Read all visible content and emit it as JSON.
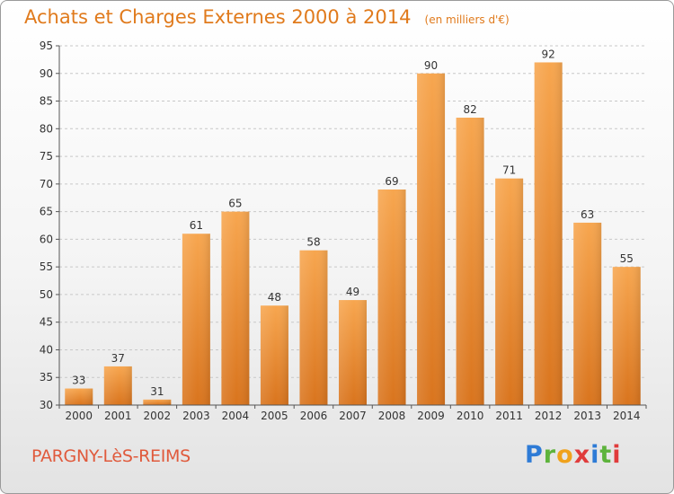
{
  "title": "Achats et Charges Externes 2000 à 2014",
  "subtitle": "(en milliers d'€)",
  "commune": "PARGNY-LèS-REIMS",
  "logo": {
    "letters": [
      "P",
      "r",
      "o",
      "x",
      "i",
      "t",
      "i"
    ],
    "text": "Proxiti"
  },
  "colors": {
    "accent": "#e07a1c",
    "bar_top": "#f7a64f",
    "bar_bottom": "#d9741d",
    "commune_text": "#e05a3c"
  },
  "chart_data": {
    "type": "bar",
    "categories": [
      "2000",
      "2001",
      "2002",
      "2003",
      "2004",
      "2005",
      "2006",
      "2007",
      "2008",
      "2009",
      "2010",
      "2011",
      "2012",
      "2013",
      "2014"
    ],
    "values": [
      33,
      37,
      31,
      61,
      65,
      48,
      58,
      49,
      69,
      90,
      82,
      71,
      92,
      63,
      55
    ],
    "title": "Achats et Charges Externes 2000 à 2014",
    "subtitle": "(en milliers d'€)",
    "xlabel": "",
    "ylabel": "",
    "ylim": [
      30,
      95
    ],
    "yticks": [
      30,
      35,
      40,
      45,
      50,
      55,
      60,
      65,
      70,
      75,
      80,
      85,
      90,
      95
    ],
    "grid": "horizontal-dashed",
    "data_labels": true
  }
}
